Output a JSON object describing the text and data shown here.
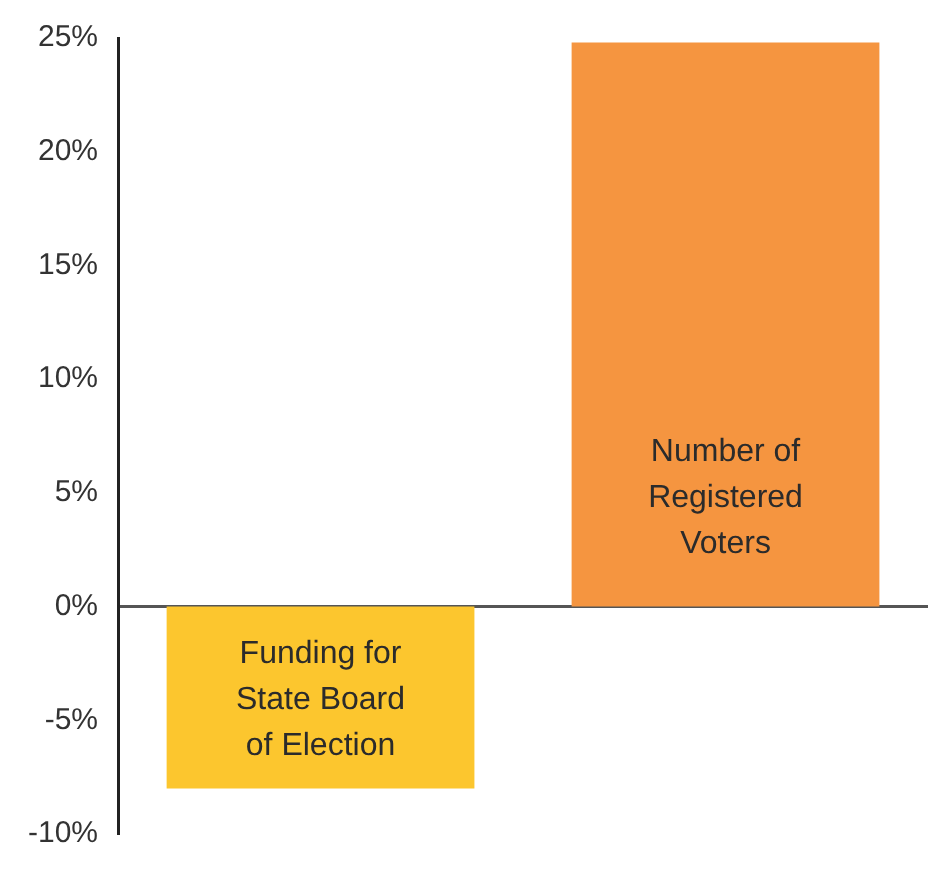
{
  "chart_data": {
    "type": "bar",
    "categories": [
      "Funding for State Board of Election",
      "Number of Registered Voters"
    ],
    "values": [
      -8,
      24.8
    ],
    "colors": [
      "#fcc62e",
      "#f59540"
    ],
    "ylim": [
      -10,
      25
    ],
    "yticks": [
      {
        "value": -10,
        "label": "-10%"
      },
      {
        "value": -5,
        "label": "-5%"
      },
      {
        "value": 0,
        "label": "0%"
      },
      {
        "value": 5,
        "label": "5%"
      },
      {
        "value": 10,
        "label": "10%"
      },
      {
        "value": 15,
        "label": "15%"
      },
      {
        "value": 20,
        "label": "20%"
      },
      {
        "value": 25,
        "label": "25%"
      }
    ],
    "legend": false,
    "tick_labels": "y"
  }
}
